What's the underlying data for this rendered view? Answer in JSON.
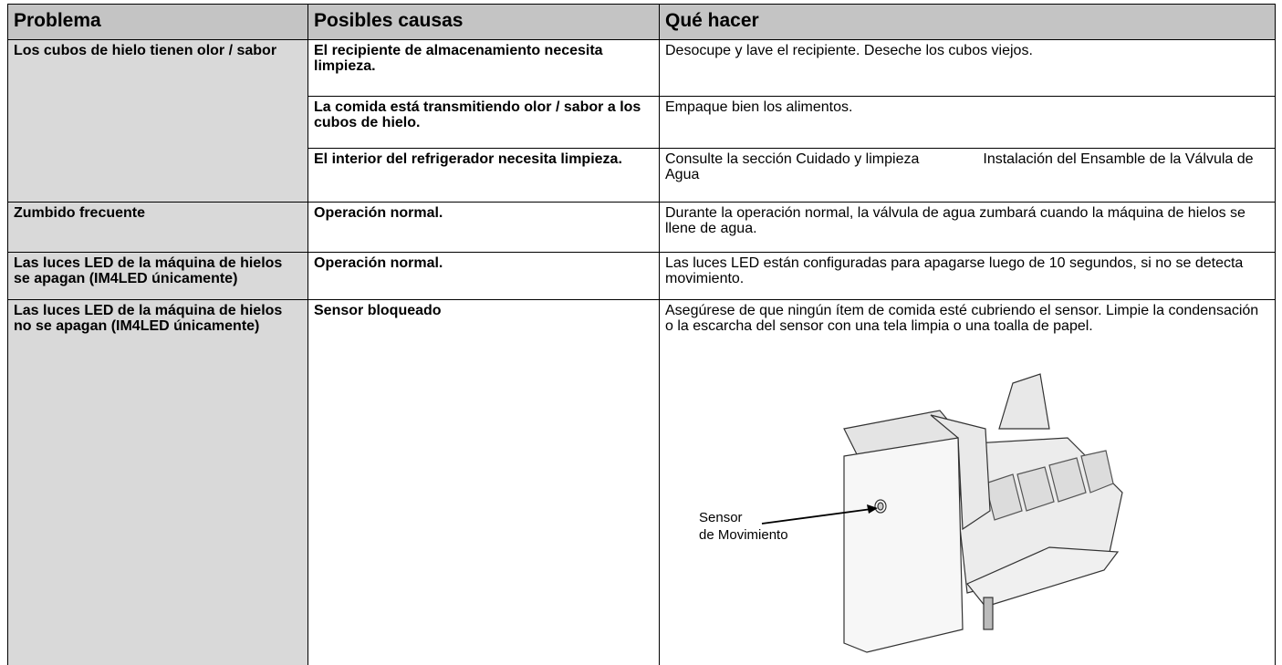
{
  "table": {
    "header": [
      "Problema",
      "Posibles causas",
      "Qué hacer"
    ],
    "rows": [
      {
        "problem": "Los cubos de hielo tienen olor / sabor",
        "causes": [
          {
            "cause": "El recipiente de almacenamiento necesita limpieza.",
            "action": "Desocupe y lave el recipiente. Deseche los cubos viejos."
          },
          {
            "cause": "La comida está transmitiendo olor / sabor a los cubos de hielo.",
            "action": "Empaque bien los alimentos."
          },
          {
            "cause": "El interior del refrigerador necesita limpieza.",
            "action_start": "Consulte la sección Cuidado y limpieza",
            "action_end": "Instalación del Ensamble de la Válvula de Agua"
          }
        ]
      },
      {
        "problem": "Zumbido frecuente",
        "causes": [
          {
            "cause": "Operación normal.",
            "action": "Durante la operación normal, la válvula de agua zumbará cuando la máquina de hielos se llene de agua."
          }
        ]
      },
      {
        "problem": "Las luces LED de la máquina de hielos se apagan (IM4LED únicamente)",
        "causes": [
          {
            "cause": "Operación normal.",
            "action": "Las luces LED están configuradas para apagarse luego de 10 segundos, si no se detecta movimiento."
          }
        ]
      },
      {
        "problem": "Las luces LED de la máquina de hielos no se apagan (IM4LED únicamente)",
        "causes": [
          {
            "cause": "Sensor bloqueado",
            "action": "Asegúrese de que ningún ítem de comida esté cubriendo el sensor. Limpie la condensación o la escarcha del sensor con una tela limpia o una toalla de papel."
          }
        ]
      }
    ]
  },
  "figure": {
    "labels": [
      "Sensor",
      "de Movimiento"
    ]
  }
}
